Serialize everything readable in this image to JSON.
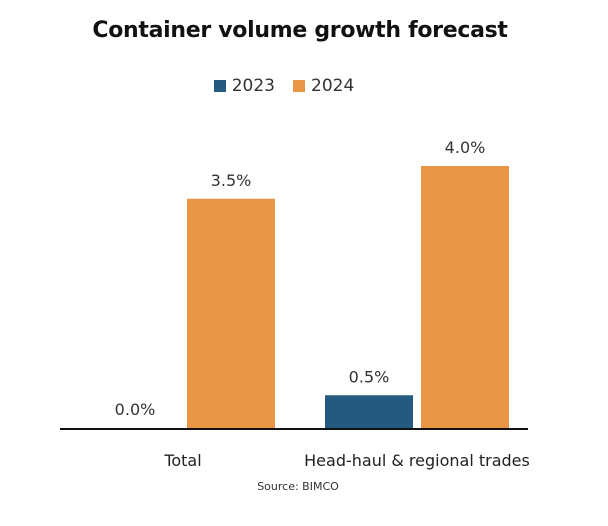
{
  "chart_data": {
    "type": "bar",
    "title": "Container volume growth forecast",
    "categories": [
      "Total",
      "Head-haul & regional trades"
    ],
    "series": [
      {
        "name": "2023",
        "values": [
          0.0,
          0.5
        ],
        "labels": [
          "0.0%",
          "0.5%"
        ],
        "color": "#245a80"
      },
      {
        "name": "2024",
        "values": [
          3.5,
          4.0
        ],
        "labels": [
          "3.5%",
          "4.0%"
        ],
        "color": "#e89545"
      }
    ],
    "xlabel": "",
    "ylabel": "",
    "ylim": [
      0,
      4.6
    ],
    "grid": false,
    "legend_position": "top-center",
    "unit": "%",
    "source": "Source: BIMCO"
  }
}
